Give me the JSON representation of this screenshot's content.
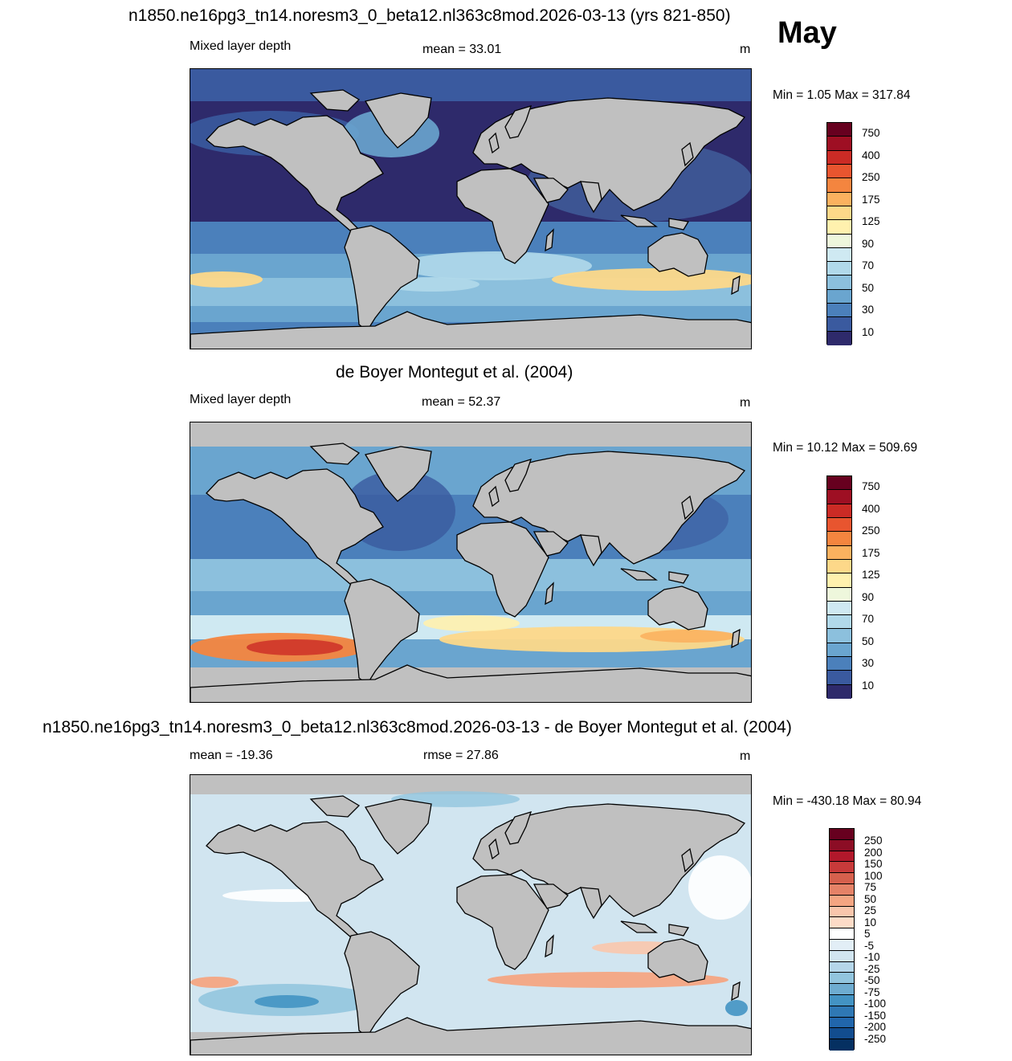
{
  "title_main": "n1850.ne16pg3_tn14.noresm3_0_beta12.nl363c8mod.2026-03-13 (yrs 821-850)",
  "month": "May",
  "panels": [
    {
      "left_label": "Mixed layer depth",
      "center_label": "mean =  33.01",
      "units": "m",
      "minmax": "Min =   1.05 Max = 317.84",
      "style": "model"
    },
    {
      "title": "de Boyer Montegut et al. (2004)",
      "left_label": "Mixed layer depth",
      "center_label": "mean =  52.37",
      "units": "m",
      "minmax": "Min =  10.12 Max = 509.69",
      "style": "obs"
    },
    {
      "title": "n1850.ne16pg3_tn14.noresm3_0_beta12.nl363c8mod.2026-03-13 - de Boyer Montegut et al. (2004)",
      "left_label": "mean = -19.36",
      "center_label": "rmse =  27.86",
      "units": "m",
      "minmax": "Min = -430.18 Max =  80.94",
      "style": "diff"
    }
  ],
  "colorbar_abs": {
    "labels": [
      "750",
      "400",
      "250",
      "175",
      "125",
      "90",
      "70",
      "50",
      "30",
      "10"
    ],
    "colors": [
      "#67001f",
      "#9e0f23",
      "#cb2b25",
      "#e8552f",
      "#f4853f",
      "#fbb15f",
      "#fdd889",
      "#fff1ae",
      "#eef7dc",
      "#cfe9f2",
      "#b1d9ea",
      "#8cc0dd",
      "#6aa5cf",
      "#4b80bb",
      "#3a5a9f",
      "#2e2a6b"
    ]
  },
  "colorbar_diff": {
    "labels": [
      "250",
      "200",
      "150",
      "100",
      "75",
      "50",
      "25",
      "10",
      "5",
      "-5",
      "-10",
      "-25",
      "-50",
      "-75",
      "-100",
      "-150",
      "-200",
      "-250"
    ],
    "colors": [
      "#67001f",
      "#8c0d25",
      "#b2182b",
      "#c83a3a",
      "#d6604d",
      "#e58267",
      "#f4a582",
      "#f9c6ac",
      "#fddbc7",
      "#ffffff",
      "#e2eef6",
      "#d1e5f0",
      "#b5d6e9",
      "#92c5de",
      "#6eacd0",
      "#4393c3",
      "#2f78b4",
      "#2166ac",
      "#124d8f",
      "#053061"
    ]
  },
  "land_color": "#c0c0c0"
}
